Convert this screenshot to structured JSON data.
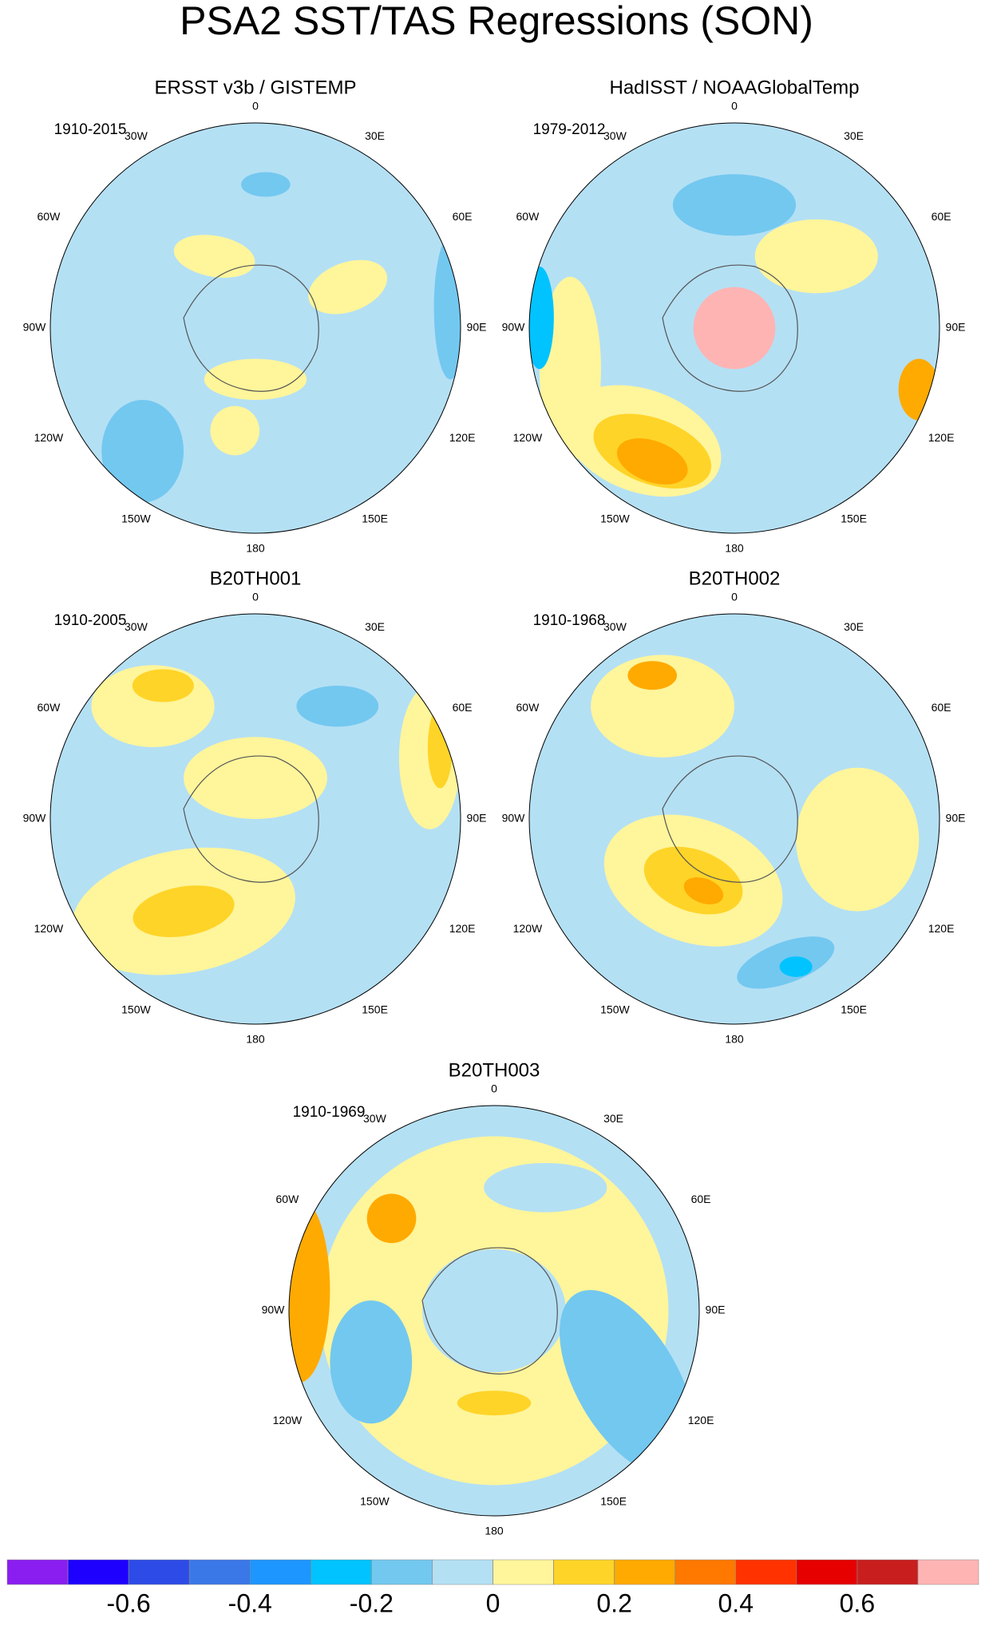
{
  "title": "PSA2 SST/TAS Regressions (SON)",
  "lon_labels": [
    "0",
    "30E",
    "60E",
    "90E",
    "120E",
    "150E",
    "180",
    "150W",
    "120W",
    "90W",
    "60W",
    "30W"
  ],
  "panels": [
    {
      "title": "ERSST v3b / GISTEMP",
      "period": "1910-2015"
    },
    {
      "title": "HadISST / NOAAGlobalTemp",
      "period": "1979-2012"
    },
    {
      "title": "B20TH001",
      "period": "1910-2005"
    },
    {
      "title": "B20TH002",
      "period": "1910-1968"
    },
    {
      "title": "B20TH003",
      "period": "1910-1969"
    }
  ],
  "colorbar": {
    "colors": [
      "#8a1ef0",
      "#1e00ff",
      "#2d4be6",
      "#3a78e8",
      "#1e96ff",
      "#00c3ff",
      "#73c8f0",
      "#b4e0f4",
      "#fff59b",
      "#ffd428",
      "#ffaa00",
      "#ff7800",
      "#ff3200",
      "#e60000",
      "#c81e1e",
      "#ffb4b4"
    ],
    "levels": [
      -0.7,
      -0.6,
      -0.5,
      -0.4,
      -0.3,
      -0.2,
      -0.1,
      0,
      0.1,
      0.2,
      0.3,
      0.4,
      0.5,
      0.6,
      0.7
    ],
    "ticks": [
      -0.6,
      -0.4,
      -0.2,
      0,
      0.2,
      0.4,
      0.6
    ]
  }
}
